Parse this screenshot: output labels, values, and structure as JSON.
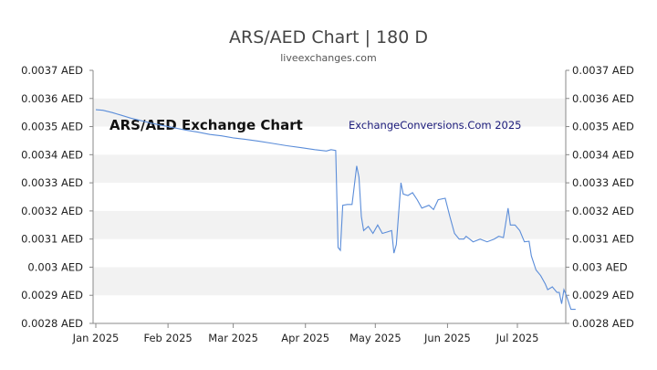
{
  "chart_data": {
    "type": "line",
    "title": "ARS/AED Chart | 180 D",
    "subtitle": "liveexchanges.com",
    "annotations": [
      "ARS/AED Exchange Chart",
      "ExchangeConversions.Com 2025"
    ],
    "y_unit": "AED",
    "ylim": [
      0.0028,
      0.0037
    ],
    "y_ticks": [
      "0.0037 AED",
      "0.0036 AED",
      "0.0035 AED",
      "0.0034 AED",
      "0.0033 AED",
      "0.0032 AED",
      "0.0031 AED",
      "0.003 AED",
      "0.0029 AED",
      "0.0028 AED"
    ],
    "x_ticks": [
      "Jan 2025",
      "Feb 2025",
      "Mar 2025",
      "Apr 2025",
      "May 2025",
      "Jun 2025",
      "Jul 2025"
    ],
    "x_range": [
      "2025-01-01",
      "2025-07-26"
    ],
    "grid": "alternating horizontal bands",
    "line_color": "#5b8dd9",
    "series": [
      {
        "points": [
          [
            "2025-01-01",
            0.00356
          ],
          [
            "2025-01-04",
            0.003558
          ],
          [
            "2025-01-08",
            0.00355
          ],
          [
            "2025-01-12",
            0.00354
          ],
          [
            "2025-01-16",
            0.00353
          ],
          [
            "2025-01-20",
            0.003522
          ],
          [
            "2025-01-25",
            0.003512
          ],
          [
            "2025-01-30",
            0.003503
          ],
          [
            "2025-02-04",
            0.003495
          ],
          [
            "2025-02-09",
            0.003487
          ],
          [
            "2025-02-14",
            0.00348
          ],
          [
            "2025-02-19",
            0.003472
          ],
          [
            "2025-02-24",
            0.003467
          ],
          [
            "2025-03-01",
            0.00346
          ],
          [
            "2025-03-06",
            0.003455
          ],
          [
            "2025-03-12",
            0.003448
          ],
          [
            "2025-03-18",
            0.00344
          ],
          [
            "2025-03-24",
            0.003432
          ],
          [
            "2025-03-30",
            0.003425
          ],
          [
            "2025-04-05",
            0.003418
          ],
          [
            "2025-04-10",
            0.003413
          ],
          [
            "2025-04-12",
            0.003418
          ],
          [
            "2025-04-14",
            0.003415
          ],
          [
            "2025-04-15",
            0.00307
          ],
          [
            "2025-04-16",
            0.00306
          ],
          [
            "2025-04-17",
            0.00322
          ],
          [
            "2025-04-19",
            0.003223
          ],
          [
            "2025-04-21",
            0.003223
          ],
          [
            "2025-04-23",
            0.00336
          ],
          [
            "2025-04-24",
            0.00332
          ],
          [
            "2025-04-25",
            0.00318
          ],
          [
            "2025-04-26",
            0.00313
          ],
          [
            "2025-04-28",
            0.003145
          ],
          [
            "2025-04-30",
            0.00312
          ],
          [
            "2025-05-02",
            0.00315
          ],
          [
            "2025-05-04",
            0.00312
          ],
          [
            "2025-05-06",
            0.003125
          ],
          [
            "2025-05-08",
            0.00313
          ],
          [
            "2025-05-09",
            0.00305
          ],
          [
            "2025-05-10",
            0.00308
          ],
          [
            "2025-05-12",
            0.0033
          ],
          [
            "2025-05-13",
            0.00326
          ],
          [
            "2025-05-15",
            0.003255
          ],
          [
            "2025-05-17",
            0.003265
          ],
          [
            "2025-05-19",
            0.00324
          ],
          [
            "2025-05-21",
            0.00321
          ],
          [
            "2025-05-24",
            0.00322
          ],
          [
            "2025-05-26",
            0.003205
          ],
          [
            "2025-05-28",
            0.00324
          ],
          [
            "2025-05-31",
            0.003245
          ],
          [
            "2025-06-02",
            0.00318
          ],
          [
            "2025-06-04",
            0.00312
          ],
          [
            "2025-06-06",
            0.0031
          ],
          [
            "2025-06-08",
            0.0031
          ],
          [
            "2025-06-09",
            0.00311
          ],
          [
            "2025-06-12",
            0.00309
          ],
          [
            "2025-06-15",
            0.0031
          ],
          [
            "2025-06-18",
            0.00309
          ],
          [
            "2025-06-21",
            0.0031
          ],
          [
            "2025-06-23",
            0.00311
          ],
          [
            "2025-06-25",
            0.003105
          ],
          [
            "2025-06-27",
            0.00321
          ],
          [
            "2025-06-28",
            0.00315
          ],
          [
            "2025-06-30",
            0.00315
          ],
          [
            "2025-07-02",
            0.00313
          ],
          [
            "2025-07-04",
            0.00309
          ],
          [
            "2025-07-06",
            0.003092
          ],
          [
            "2025-07-07",
            0.00304
          ],
          [
            "2025-07-09",
            0.00299
          ],
          [
            "2025-07-11",
            0.00297
          ],
          [
            "2025-07-13",
            0.00294
          ],
          [
            "2025-07-14",
            0.00292
          ],
          [
            "2025-07-16",
            0.00293
          ],
          [
            "2025-07-18",
            0.00291
          ],
          [
            "2025-07-19",
            0.00291
          ],
          [
            "2025-07-20",
            0.00287
          ],
          [
            "2025-07-21",
            0.00292
          ],
          [
            "2025-07-22",
            0.0029
          ],
          [
            "2025-07-24",
            0.00285
          ],
          [
            "2025-07-26",
            0.00285
          ]
        ]
      }
    ]
  }
}
